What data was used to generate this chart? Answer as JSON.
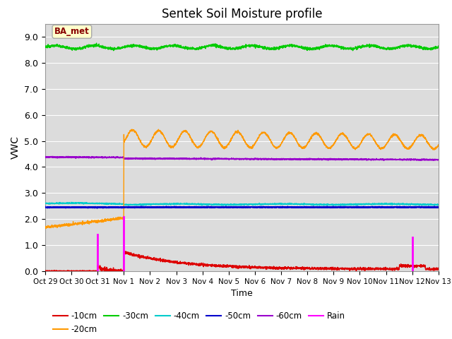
{
  "title": "Sentek Soil Moisture profile",
  "xlabel": "Time",
  "ylabel": "VWC",
  "ylim": [
    0.0,
    9.5
  ],
  "xlim": [
    0,
    15
  ],
  "yticks": [
    0.0,
    1.0,
    2.0,
    3.0,
    4.0,
    5.0,
    6.0,
    7.0,
    8.0,
    9.0
  ],
  "xtick_labels": [
    "Oct 29",
    "Oct 30",
    "Oct 31",
    "Nov 1",
    "Nov 2",
    "Nov 3",
    "Nov 4",
    "Nov 5",
    "Nov 6",
    "Nov 7",
    "Nov 8",
    "Nov 9",
    "Nov 10",
    "Nov 11",
    "Nov 12",
    "Nov 13"
  ],
  "colors": {
    "minus10cm": "#dd0000",
    "minus20cm": "#ff9900",
    "minus30cm": "#00cc00",
    "minus40cm": "#00cccc",
    "minus50cm": "#0000cc",
    "minus60cm": "#9900cc",
    "rain": "#ff00ff"
  },
  "background_color": "#dcdcdc",
  "legend_label": "BA_met",
  "legend_box_facecolor": "#ffffcc",
  "legend_text_color": "#880000",
  "rain_events": [
    {
      "day": 2.0,
      "height": 1.4
    },
    {
      "day": 3.0,
      "height": 2.1
    },
    {
      "day": 14.0,
      "height": 1.3
    }
  ]
}
